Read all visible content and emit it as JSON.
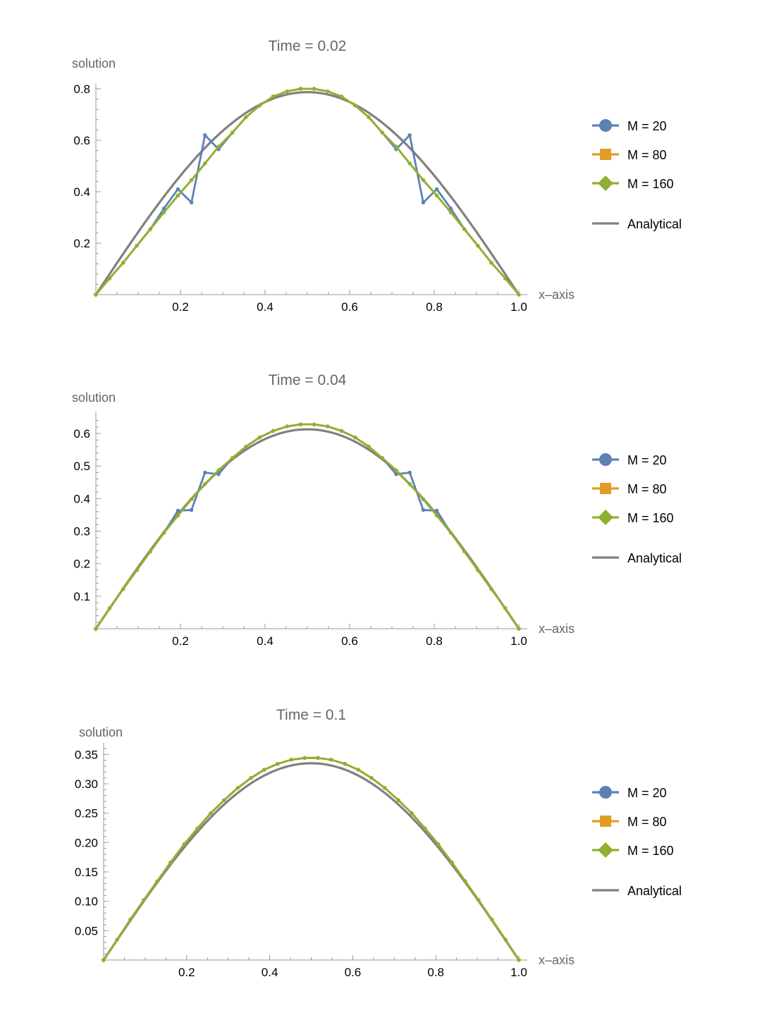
{
  "chart_data": [
    {
      "type": "line",
      "title": "Time = 0.02",
      "xlabel": "x–axis",
      "ylabel": "solution",
      "xlim": [
        0,
        1
      ],
      "ylim": [
        0,
        0.8
      ],
      "xticks": [
        "0.2",
        "0.4",
        "0.6",
        "0.8",
        "1.0"
      ],
      "yticks": [
        "0.2",
        "0.4",
        "0.6",
        "0.8"
      ],
      "series": [
        {
          "name": "M = 20",
          "marker": "circle",
          "color": "#5E81B5",
          "x": [
            0,
            0.0323,
            0.0645,
            0.0968,
            0.129,
            0.161,
            0.194,
            0.226,
            0.258,
            0.29,
            0.323,
            0.355,
            0.387,
            0.419,
            0.452,
            0.484,
            0.516,
            0.548,
            0.581,
            0.613,
            0.645,
            0.677,
            0.71,
            0.742,
            0.774,
            0.806,
            0.839,
            0.871,
            0.903,
            0.935,
            0.968,
            1.0
          ],
          "y": [
            0,
            0.063,
            0.124,
            0.19,
            0.255,
            0.335,
            0.41,
            0.358,
            0.62,
            0.565,
            0.63,
            0.69,
            0.735,
            0.77,
            0.79,
            0.8,
            0.8,
            0.79,
            0.77,
            0.735,
            0.69,
            0.63,
            0.565,
            0.62,
            0.358,
            0.41,
            0.335,
            0.255,
            0.19,
            0.124,
            0.063,
            0
          ]
        },
        {
          "name": "M = 80",
          "marker": "square",
          "color": "#E19C24",
          "x": [
            0,
            0.0323,
            0.0645,
            0.0968,
            0.129,
            0.161,
            0.194,
            0.226,
            0.258,
            0.29,
            0.323,
            0.355,
            0.387,
            0.419,
            0.452,
            0.484,
            0.516,
            0.548,
            0.581,
            0.613,
            0.645,
            0.677,
            0.71,
            0.742,
            0.774,
            0.806,
            0.839,
            0.871,
            0.903,
            0.935,
            0.968,
            1.0
          ],
          "y": [
            0,
            0.063,
            0.124,
            0.19,
            0.255,
            0.32,
            0.385,
            0.445,
            0.51,
            0.575,
            0.63,
            0.69,
            0.735,
            0.77,
            0.79,
            0.8,
            0.8,
            0.79,
            0.77,
            0.735,
            0.69,
            0.63,
            0.575,
            0.51,
            0.445,
            0.385,
            0.32,
            0.255,
            0.19,
            0.124,
            0.063,
            0
          ]
        },
        {
          "name": "M = 160",
          "marker": "diamond",
          "color": "#8FB032",
          "x": [
            0,
            0.0323,
            0.0645,
            0.0968,
            0.129,
            0.161,
            0.194,
            0.226,
            0.258,
            0.29,
            0.323,
            0.355,
            0.387,
            0.419,
            0.452,
            0.484,
            0.516,
            0.548,
            0.581,
            0.613,
            0.645,
            0.677,
            0.71,
            0.742,
            0.774,
            0.806,
            0.839,
            0.871,
            0.903,
            0.935,
            0.968,
            1.0
          ],
          "y": [
            0,
            0.063,
            0.124,
            0.19,
            0.255,
            0.32,
            0.385,
            0.445,
            0.51,
            0.575,
            0.63,
            0.69,
            0.735,
            0.77,
            0.79,
            0.8,
            0.8,
            0.79,
            0.77,
            0.735,
            0.69,
            0.63,
            0.575,
            0.51,
            0.445,
            0.385,
            0.32,
            0.255,
            0.19,
            0.124,
            0.063,
            0
          ]
        },
        {
          "name": "Analytical",
          "marker": "none",
          "color": "#808080",
          "function": "0.787*sin(pi*x)"
        }
      ]
    },
    {
      "type": "line",
      "title": "Time = 0.04",
      "xlabel": "x–axis",
      "ylabel": "solution",
      "xlim": [
        0,
        1
      ],
      "ylim": [
        0,
        0.65
      ],
      "xticks": [
        "0.2",
        "0.4",
        "0.6",
        "0.8",
        "1.0"
      ],
      "yticks": [
        "0.1",
        "0.2",
        "0.3",
        "0.4",
        "0.5",
        "0.6"
      ],
      "series": [
        {
          "name": "M = 20",
          "marker": "circle",
          "color": "#5E81B5",
          "x": [
            0,
            0.0323,
            0.0645,
            0.0968,
            0.129,
            0.161,
            0.194,
            0.226,
            0.258,
            0.29,
            0.323,
            0.355,
            0.387,
            0.419,
            0.452,
            0.484,
            0.516,
            0.548,
            0.581,
            0.613,
            0.645,
            0.677,
            0.71,
            0.742,
            0.774,
            0.806,
            0.839,
            0.871,
            0.903,
            0.935,
            0.968,
            1.0
          ],
          "y": [
            0,
            0.063,
            0.122,
            0.18,
            0.238,
            0.295,
            0.363,
            0.365,
            0.48,
            0.475,
            0.525,
            0.56,
            0.588,
            0.608,
            0.622,
            0.628,
            0.628,
            0.622,
            0.608,
            0.588,
            0.56,
            0.525,
            0.475,
            0.48,
            0.365,
            0.363,
            0.295,
            0.238,
            0.18,
            0.122,
            0.063,
            0
          ]
        },
        {
          "name": "M = 80",
          "marker": "square",
          "color": "#E19C24",
          "x": [
            0,
            0.0323,
            0.0645,
            0.0968,
            0.129,
            0.161,
            0.194,
            0.226,
            0.258,
            0.29,
            0.323,
            0.355,
            0.387,
            0.419,
            0.452,
            0.484,
            0.516,
            0.548,
            0.581,
            0.613,
            0.645,
            0.677,
            0.71,
            0.742,
            0.774,
            0.806,
            0.839,
            0.871,
            0.903,
            0.935,
            0.968,
            1.0
          ],
          "y": [
            0,
            0.063,
            0.122,
            0.18,
            0.238,
            0.295,
            0.348,
            0.398,
            0.445,
            0.487,
            0.525,
            0.56,
            0.588,
            0.608,
            0.622,
            0.628,
            0.628,
            0.622,
            0.608,
            0.588,
            0.56,
            0.525,
            0.487,
            0.445,
            0.398,
            0.348,
            0.295,
            0.238,
            0.18,
            0.122,
            0.063,
            0
          ]
        },
        {
          "name": "M = 160",
          "marker": "diamond",
          "color": "#8FB032",
          "x": [
            0,
            0.0323,
            0.0645,
            0.0968,
            0.129,
            0.161,
            0.194,
            0.226,
            0.258,
            0.29,
            0.323,
            0.355,
            0.387,
            0.419,
            0.452,
            0.484,
            0.516,
            0.548,
            0.581,
            0.613,
            0.645,
            0.677,
            0.71,
            0.742,
            0.774,
            0.806,
            0.839,
            0.871,
            0.903,
            0.935,
            0.968,
            1.0
          ],
          "y": [
            0,
            0.063,
            0.122,
            0.18,
            0.238,
            0.295,
            0.348,
            0.398,
            0.445,
            0.487,
            0.525,
            0.56,
            0.588,
            0.608,
            0.622,
            0.628,
            0.628,
            0.622,
            0.608,
            0.588,
            0.56,
            0.525,
            0.487,
            0.445,
            0.398,
            0.348,
            0.295,
            0.238,
            0.18,
            0.122,
            0.063,
            0
          ]
        },
        {
          "name": "Analytical",
          "marker": "none",
          "color": "#808080",
          "function": "0.613*sin(pi*x)"
        }
      ]
    },
    {
      "type": "line",
      "title": "Time = 0.1",
      "xlabel": "x–axis",
      "ylabel": "solution",
      "xlim": [
        0,
        1
      ],
      "ylim": [
        0,
        0.36
      ],
      "xticks": [
        "0.2",
        "0.4",
        "0.6",
        "0.8",
        "1.0"
      ],
      "yticks": [
        "0.05",
        "0.10",
        "0.15",
        "0.20",
        "0.25",
        "0.30",
        "0.35"
      ],
      "series": [
        {
          "name": "M = 20",
          "marker": "circle",
          "color": "#5E81B5",
          "x": [
            0,
            0.0323,
            0.0645,
            0.0968,
            0.129,
            0.161,
            0.194,
            0.226,
            0.258,
            0.29,
            0.323,
            0.355,
            0.387,
            0.419,
            0.452,
            0.484,
            0.516,
            0.548,
            0.581,
            0.613,
            0.645,
            0.677,
            0.71,
            0.742,
            0.774,
            0.806,
            0.839,
            0.871,
            0.903,
            0.935,
            0.968,
            1.0
          ],
          "y": [
            0,
            0.0345,
            0.069,
            0.102,
            0.134,
            0.166,
            0.197,
            0.224,
            0.25,
            0.272,
            0.293,
            0.31,
            0.324,
            0.334,
            0.341,
            0.344,
            0.344,
            0.341,
            0.334,
            0.324,
            0.31,
            0.293,
            0.272,
            0.25,
            0.224,
            0.197,
            0.166,
            0.134,
            0.102,
            0.069,
            0.0345,
            0
          ]
        },
        {
          "name": "M = 80",
          "marker": "square",
          "color": "#E19C24",
          "x": [
            0,
            0.0323,
            0.0645,
            0.0968,
            0.129,
            0.161,
            0.194,
            0.226,
            0.258,
            0.29,
            0.323,
            0.355,
            0.387,
            0.419,
            0.452,
            0.484,
            0.516,
            0.548,
            0.581,
            0.613,
            0.645,
            0.677,
            0.71,
            0.742,
            0.774,
            0.806,
            0.839,
            0.871,
            0.903,
            0.935,
            0.968,
            1.0
          ],
          "y": [
            0,
            0.0345,
            0.069,
            0.102,
            0.134,
            0.166,
            0.197,
            0.224,
            0.25,
            0.272,
            0.293,
            0.31,
            0.324,
            0.334,
            0.341,
            0.344,
            0.344,
            0.341,
            0.334,
            0.324,
            0.31,
            0.293,
            0.272,
            0.25,
            0.224,
            0.197,
            0.166,
            0.134,
            0.102,
            0.069,
            0.0345,
            0
          ]
        },
        {
          "name": "M = 160",
          "marker": "diamond",
          "color": "#8FB032",
          "x": [
            0,
            0.0323,
            0.0645,
            0.0968,
            0.129,
            0.161,
            0.194,
            0.226,
            0.258,
            0.29,
            0.323,
            0.355,
            0.387,
            0.419,
            0.452,
            0.484,
            0.516,
            0.548,
            0.581,
            0.613,
            0.645,
            0.677,
            0.71,
            0.742,
            0.774,
            0.806,
            0.839,
            0.871,
            0.903,
            0.935,
            0.968,
            1.0
          ],
          "y": [
            0,
            0.0345,
            0.069,
            0.102,
            0.134,
            0.166,
            0.197,
            0.224,
            0.25,
            0.272,
            0.293,
            0.31,
            0.324,
            0.334,
            0.341,
            0.344,
            0.344,
            0.341,
            0.334,
            0.324,
            0.31,
            0.293,
            0.272,
            0.25,
            0.224,
            0.197,
            0.166,
            0.134,
            0.102,
            0.069,
            0.0345,
            0
          ]
        },
        {
          "name": "Analytical",
          "marker": "none",
          "color": "#808080",
          "function": "0.335*sin(pi*x)"
        }
      ]
    }
  ]
}
